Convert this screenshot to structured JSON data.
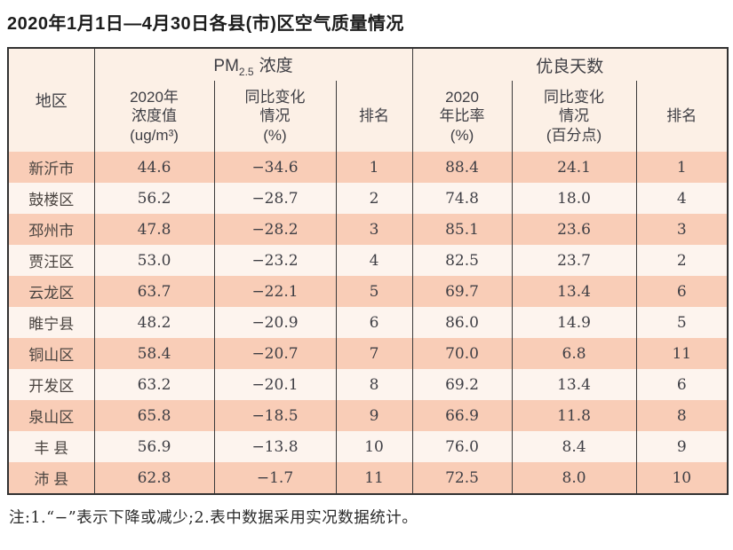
{
  "title": "2020年1月1日—4月30日各县(市)区空气质量情况",
  "table": {
    "region_header": "地区",
    "pm_group": {
      "prefix": "PM",
      "sub": "2.5",
      "suffix": "浓度"
    },
    "good_group": "优良天数",
    "subheaders": [
      "2020年\n浓度值\n(ug/m³)",
      "同比变化\n情况\n(%)",
      "排名",
      "2020\n年比率\n(%)",
      "同比变化\n情况\n(百分点)",
      "排名"
    ],
    "rows": [
      {
        "region": "新沂市",
        "pm_value": "44.6",
        "pm_change": "−34.6",
        "pm_rank": "1",
        "good_rate": "88.4",
        "good_change": "24.1",
        "good_rank": "1"
      },
      {
        "region": "鼓楼区",
        "pm_value": "56.2",
        "pm_change": "−28.7",
        "pm_rank": "2",
        "good_rate": "74.8",
        "good_change": "18.0",
        "good_rank": "4"
      },
      {
        "region": "邳州市",
        "pm_value": "47.8",
        "pm_change": "−28.2",
        "pm_rank": "3",
        "good_rate": "85.1",
        "good_change": "23.6",
        "good_rank": "3"
      },
      {
        "region": "贾汪区",
        "pm_value": "53.0",
        "pm_change": "−23.2",
        "pm_rank": "4",
        "good_rate": "82.5",
        "good_change": "23.7",
        "good_rank": "2"
      },
      {
        "region": "云龙区",
        "pm_value": "63.7",
        "pm_change": "−22.1",
        "pm_rank": "5",
        "good_rate": "69.7",
        "good_change": "13.4",
        "good_rank": "6"
      },
      {
        "region": "睢宁县",
        "pm_value": "48.2",
        "pm_change": "−20.9",
        "pm_rank": "6",
        "good_rate": "86.0",
        "good_change": "14.9",
        "good_rank": "5"
      },
      {
        "region": "铜山区",
        "pm_value": "58.4",
        "pm_change": "−20.7",
        "pm_rank": "7",
        "good_rate": "70.0",
        "good_change": "6.8",
        "good_rank": "11"
      },
      {
        "region": "开发区",
        "pm_value": "63.2",
        "pm_change": "−20.1",
        "pm_rank": "8",
        "good_rate": "69.2",
        "good_change": "13.4",
        "good_rank": "6"
      },
      {
        "region": "泉山区",
        "pm_value": "65.8",
        "pm_change": "−18.5",
        "pm_rank": "9",
        "good_rate": "66.9",
        "good_change": "11.8",
        "good_rank": "8"
      },
      {
        "region": "丰 县",
        "pm_value": "56.9",
        "pm_change": "−13.8",
        "pm_rank": "10",
        "good_rate": "76.0",
        "good_change": "8.4",
        "good_rank": "9"
      },
      {
        "region": "沛 县",
        "pm_value": "62.8",
        "pm_change": "−1.7",
        "pm_rank": "11",
        "good_rate": "72.5",
        "good_change": "8.0",
        "good_rank": "10"
      }
    ]
  },
  "footnote": "注:1.“−”表示下降或减少;2.表中数据采用实况数据统计。",
  "colors": {
    "row_odd_bg": "#f9cdb7",
    "row_even_bg": "#fdf4ee",
    "header_bg": "#fcf0e6",
    "border": "#323232",
    "text": "#46464c"
  }
}
